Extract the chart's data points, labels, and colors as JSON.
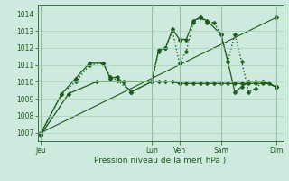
{
  "bg_color": "#ceeade",
  "grid_color": "#aacfba",
  "line_color": "#1a5c1a",
  "title": "Pression niveau de la mer( hPa )",
  "ylim": [
    1006.5,
    1014.5
  ],
  "yticks": [
    1007,
    1008,
    1009,
    1010,
    1011,
    1012,
    1013,
    1014
  ],
  "day_labels": [
    "Jeu",
    "Lun",
    "Ven",
    "Sam",
    "Dim"
  ],
  "day_positions": [
    0,
    16,
    20,
    26,
    34
  ],
  "xlim": [
    -0.5,
    35
  ],
  "line_flat": {
    "x": [
      0,
      4,
      8,
      12,
      16,
      17,
      18,
      19,
      20,
      21,
      22,
      23,
      24,
      25,
      26,
      27,
      28,
      29,
      30,
      31,
      32,
      33,
      34
    ],
    "y": [
      1006.9,
      1009.3,
      1010.0,
      1010.0,
      1010.0,
      1010.0,
      1010.0,
      1010.0,
      1009.9,
      1009.9,
      1009.9,
      1009.9,
      1009.9,
      1009.9,
      1009.9,
      1009.9,
      1009.9,
      1009.9,
      1009.9,
      1009.9,
      1009.9,
      1009.9,
      1009.7
    ]
  },
  "line_zigzag": {
    "x": [
      0,
      3,
      5,
      7,
      9,
      10,
      11,
      13,
      16,
      17,
      18,
      19,
      20,
      21,
      22,
      23,
      24,
      25,
      26,
      27,
      28,
      29,
      30,
      31,
      32,
      34
    ],
    "y": [
      1006.9,
      1009.3,
      1010.0,
      1011.0,
      1011.1,
      1010.3,
      1010.1,
      1009.4,
      1010.0,
      1011.8,
      1012.0,
      1013.0,
      1011.1,
      1011.8,
      1013.5,
      1013.8,
      1013.5,
      1013.5,
      1012.8,
      1011.2,
      1012.8,
      1011.2,
      1009.4,
      1009.6,
      1010.0,
      1009.7
    ]
  },
  "line_upper": {
    "x": [
      0,
      3,
      5,
      7,
      9,
      10,
      11,
      13,
      16,
      17,
      18,
      19,
      20,
      21,
      22,
      23,
      24,
      26,
      27,
      28,
      29,
      30,
      31,
      32,
      34
    ],
    "y": [
      1007.0,
      1009.3,
      1010.2,
      1011.1,
      1011.1,
      1010.2,
      1010.3,
      1009.4,
      1010.0,
      1011.9,
      1012.0,
      1013.1,
      1012.5,
      1012.5,
      1013.6,
      1013.8,
      1013.6,
      1012.8,
      1011.2,
      1009.4,
      1009.7,
      1010.0,
      1010.0,
      1010.0,
      1009.7
    ]
  },
  "line_straight": {
    "x": [
      0,
      34
    ],
    "y": [
      1007.0,
      1013.8
    ]
  }
}
